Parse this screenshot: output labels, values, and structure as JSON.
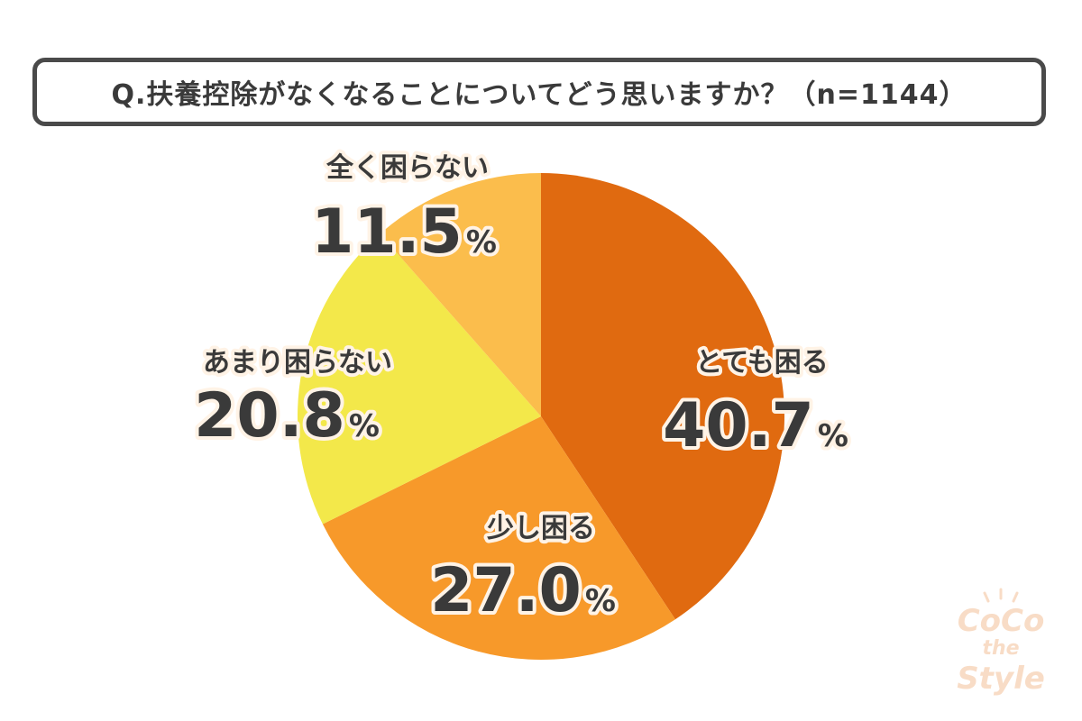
{
  "title": "Q.扶養控除がなくなることについてどう思いますか？（n=1144）",
  "chart_data": {
    "type": "pie",
    "title": "Q.扶養控除がなくなることについてどう思いますか？（n=1144）",
    "n": 1144,
    "unit": "%",
    "slices": [
      {
        "label": "とても困る",
        "value": 40.7,
        "display": "40.7",
        "color": "#e06a10"
      },
      {
        "label": "少し困る",
        "value": 27.0,
        "display": "27.0",
        "color": "#f7992a"
      },
      {
        "label": "あまり困らない",
        "value": 20.8,
        "display": "20.8",
        "color": "#f3e84a"
      },
      {
        "label": "全く困らない",
        "value": 11.5,
        "display": "11.5",
        "color": "#fbbd4c"
      }
    ]
  },
  "watermark": {
    "line1": "CoCo",
    "line2": "the",
    "line3": "Style",
    "color": "#f8dcc6"
  }
}
